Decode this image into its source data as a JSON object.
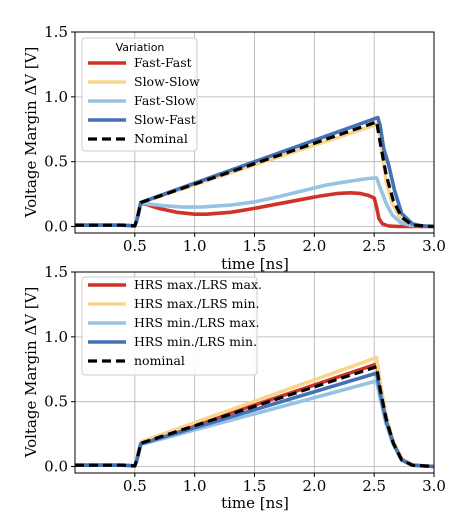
{
  "chart_data": [
    {
      "type": "line",
      "xlabel": "time [ns]",
      "ylabel": "Voltage Margin ΔV [V]",
      "xlim": [
        0,
        3.0
      ],
      "ylim": [
        -0.05,
        1.5
      ],
      "xticks": [
        "0.5",
        "1.0",
        "1.5",
        "2.0",
        "2.5",
        "3.0"
      ],
      "xtick_values": [
        0.5,
        1.0,
        1.5,
        2.0,
        2.5,
        3.0
      ],
      "yticks": [
        "0.0",
        "0.5",
        "1.0",
        "1.5"
      ],
      "ytick_values": [
        0.0,
        0.5,
        1.0,
        1.5
      ],
      "grid": true,
      "legend": {
        "title": "Variation",
        "placement": "upper-left"
      },
      "series": [
        {
          "name": "Fast-Fast",
          "color": "#d03228",
          "dash": "solid",
          "x": [
            0,
            0.4,
            0.5,
            0.52,
            0.55,
            0.6,
            0.7,
            0.85,
            1.0,
            1.1,
            1.3,
            1.5,
            1.7,
            1.9,
            2.05,
            2.2,
            2.3,
            2.38,
            2.45,
            2.5,
            2.52,
            2.54,
            2.57,
            2.62,
            2.7,
            3.0
          ],
          "y": [
            0.01,
            0.01,
            0.005,
            0.06,
            0.18,
            0.17,
            0.14,
            0.11,
            0.095,
            0.095,
            0.11,
            0.14,
            0.175,
            0.21,
            0.235,
            0.255,
            0.26,
            0.255,
            0.24,
            0.22,
            0.15,
            0.06,
            0.02,
            0.005,
            0.0,
            0.0
          ]
        },
        {
          "name": "Slow-Slow",
          "color": "#f9d58b",
          "dash": "solid",
          "x": [
            0,
            0.4,
            0.5,
            0.52,
            0.55,
            2.5,
            2.53,
            2.57,
            2.6,
            2.65,
            2.72,
            2.8,
            3.0
          ],
          "y": [
            0.01,
            0.01,
            0.005,
            0.06,
            0.185,
            0.78,
            0.8,
            0.55,
            0.35,
            0.18,
            0.06,
            0.01,
            0.0
          ]
        },
        {
          "name": "Fast-Slow",
          "color": "#96c3e3",
          "dash": "solid",
          "x": [
            0,
            0.4,
            0.5,
            0.52,
            0.55,
            0.6,
            0.75,
            0.9,
            1.05,
            1.3,
            1.5,
            1.7,
            1.9,
            2.1,
            2.3,
            2.45,
            2.52,
            2.55,
            2.6,
            2.65,
            2.72,
            2.8,
            3.0
          ],
          "y": [
            0.01,
            0.01,
            0.005,
            0.06,
            0.185,
            0.175,
            0.16,
            0.15,
            0.15,
            0.165,
            0.19,
            0.23,
            0.275,
            0.32,
            0.35,
            0.37,
            0.375,
            0.3,
            0.18,
            0.09,
            0.03,
            0.01,
            0.0
          ]
        },
        {
          "name": "Slow-Fast",
          "color": "#4470b4",
          "dash": "solid",
          "x": [
            0,
            0.4,
            0.5,
            0.52,
            0.55,
            2.53,
            2.55,
            2.58,
            2.62,
            2.67,
            2.73,
            2.82,
            2.9,
            3.0
          ],
          "y": [
            0.01,
            0.01,
            0.005,
            0.06,
            0.185,
            0.84,
            0.78,
            0.6,
            0.48,
            0.28,
            0.1,
            0.02,
            0.005,
            0.0
          ]
        },
        {
          "name": "Nominal",
          "color": "#000000",
          "dash": "dashed",
          "x": [
            0,
            0.4,
            0.5,
            0.52,
            0.55,
            2.5,
            2.52,
            2.55,
            2.6,
            2.66,
            2.73,
            2.82,
            3.0
          ],
          "y": [
            0.01,
            0.01,
            0.005,
            0.06,
            0.185,
            0.8,
            0.81,
            0.65,
            0.4,
            0.2,
            0.07,
            0.01,
            0.0
          ]
        }
      ]
    },
    {
      "type": "line",
      "xlabel": "time [ns]",
      "ylabel": "Voltage Margin ΔV [V]",
      "xlim": [
        0,
        3.0
      ],
      "ylim": [
        -0.05,
        1.5
      ],
      "xticks": [
        "0.5",
        "1.0",
        "1.5",
        "2.0",
        "2.5",
        "3.0"
      ],
      "xtick_values": [
        0.5,
        1.0,
        1.5,
        2.0,
        2.5,
        3.0
      ],
      "yticks": [
        "0.0",
        "0.5",
        "1.0",
        "1.5"
      ],
      "ytick_values": [
        0.0,
        0.5,
        1.0,
        1.5
      ],
      "grid": true,
      "legend": {
        "title": "",
        "placement": "upper-left"
      },
      "series": [
        {
          "name": "HRS max./LRS max.",
          "color": "#d03228",
          "dash": "solid",
          "x": [
            0,
            0.4,
            0.5,
            0.52,
            0.55,
            2.52,
            2.55,
            2.6,
            2.66,
            2.73,
            2.82,
            3.0
          ],
          "y": [
            0.01,
            0.01,
            0.005,
            0.06,
            0.18,
            0.79,
            0.62,
            0.38,
            0.19,
            0.06,
            0.01,
            0.0
          ]
        },
        {
          "name": "HRS max./LRS min.",
          "color": "#f9d58b",
          "dash": "solid",
          "x": [
            0,
            0.4,
            0.5,
            0.52,
            0.55,
            2.52,
            2.55,
            2.6,
            2.66,
            2.73,
            2.82,
            3.0
          ],
          "y": [
            0.01,
            0.01,
            0.005,
            0.06,
            0.19,
            0.84,
            0.65,
            0.39,
            0.19,
            0.06,
            0.01,
            0.0
          ]
        },
        {
          "name": "HRS min./LRS max.",
          "color": "#96c3e3",
          "dash": "solid",
          "x": [
            0,
            0.4,
            0.5,
            0.52,
            0.55,
            2.52,
            2.55,
            2.6,
            2.66,
            2.73,
            2.82,
            3.0
          ],
          "y": [
            0.01,
            0.01,
            0.005,
            0.06,
            0.17,
            0.66,
            0.53,
            0.33,
            0.17,
            0.05,
            0.01,
            0.0
          ]
        },
        {
          "name": "HRS min./LRS min.",
          "color": "#4470b4",
          "dash": "solid",
          "x": [
            0,
            0.4,
            0.5,
            0.52,
            0.55,
            2.52,
            2.55,
            2.6,
            2.66,
            2.73,
            2.82,
            3.0
          ],
          "y": [
            0.01,
            0.01,
            0.005,
            0.06,
            0.175,
            0.72,
            0.57,
            0.35,
            0.18,
            0.05,
            0.01,
            0.0
          ]
        },
        {
          "name": "nominal",
          "color": "#000000",
          "dash": "dashed",
          "x": [
            0,
            0.4,
            0.5,
            0.52,
            0.55,
            2.52,
            2.55,
            2.6,
            2.66,
            2.73,
            2.82,
            3.0
          ],
          "y": [
            0.01,
            0.01,
            0.005,
            0.06,
            0.18,
            0.77,
            0.6,
            0.37,
            0.18,
            0.05,
            0.01,
            0.0
          ]
        }
      ]
    }
  ]
}
